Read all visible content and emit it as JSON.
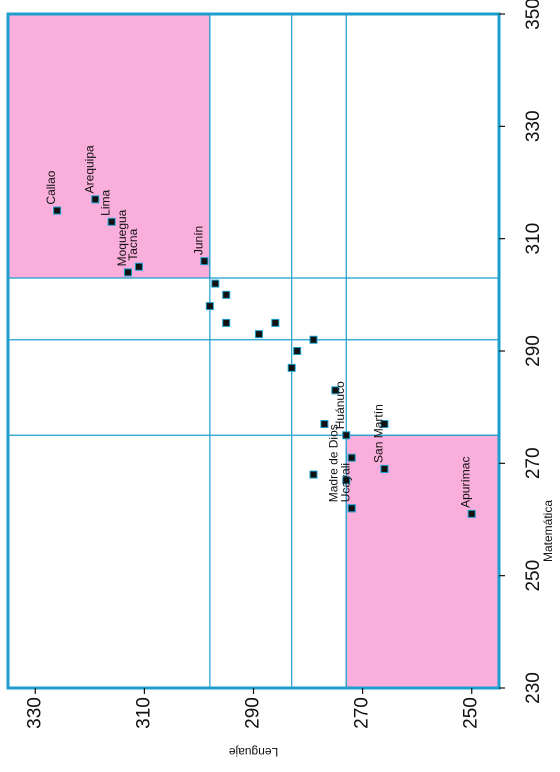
{
  "chart_data": {
    "type": "scatter",
    "title": "",
    "x_axis": {
      "label": "Matemática",
      "range": [
        230,
        350
      ],
      "ticks": [
        230,
        250,
        270,
        290,
        310,
        330,
        350
      ]
    },
    "y_axis": {
      "label": "Lenguaje",
      "range": [
        245,
        335
      ],
      "ticks": [
        250,
        270,
        290,
        310,
        330
      ]
    },
    "reference_lines": {
      "matematica": [
        275,
        292,
        303
      ],
      "lenguaje": [
        273,
        283,
        298
      ]
    },
    "highlight_regions": [
      {
        "matematica": [
          303,
          350
        ],
        "lenguaje": [
          298,
          335
        ],
        "color": "#f9aedb"
      },
      {
        "matematica": [
          230,
          275
        ],
        "lenguaje": [
          245,
          273
        ],
        "color": "#f9aedb"
      }
    ],
    "points": [
      {
        "label": "Callao",
        "matematica": 315,
        "lenguaje": 326
      },
      {
        "label": "Arequipa",
        "matematica": 317,
        "lenguaje": 319
      },
      {
        "label": "Lima",
        "matematica": 313,
        "lenguaje": 316
      },
      {
        "label": "Moquegua",
        "matematica": 304,
        "lenguaje": 313
      },
      {
        "label": "Tacna",
        "matematica": 305,
        "lenguaje": 311
      },
      {
        "label": "Junín",
        "matematica": 306,
        "lenguaje": 299
      },
      {
        "label": "",
        "matematica": 302,
        "lenguaje": 297
      },
      {
        "label": "",
        "matematica": 300,
        "lenguaje": 295
      },
      {
        "label": "",
        "matematica": 298,
        "lenguaje": 298
      },
      {
        "label": "",
        "matematica": 295,
        "lenguaje": 295
      },
      {
        "label": "",
        "matematica": 295,
        "lenguaje": 286
      },
      {
        "label": "",
        "matematica": 293,
        "lenguaje": 289
      },
      {
        "label": "",
        "matematica": 292,
        "lenguaje": 279
      },
      {
        "label": "",
        "matematica": 290,
        "lenguaje": 282
      },
      {
        "label": "",
        "matematica": 287,
        "lenguaje": 283
      },
      {
        "label": "",
        "matematica": 283,
        "lenguaje": 275
      },
      {
        "label": "",
        "matematica": 277,
        "lenguaje": 277
      },
      {
        "label": "",
        "matematica": 277,
        "lenguaje": 266
      },
      {
        "label": "Huánuco",
        "matematica": 275,
        "lenguaje": 273
      },
      {
        "label": "",
        "matematica": 271,
        "lenguaje": 272
      },
      {
        "label": "",
        "matematica": 269,
        "lenguaje": 266
      },
      {
        "label": "",
        "matematica": 268,
        "lenguaje": 279
      },
      {
        "label": "",
        "matematica": 267,
        "lenguaje": 273
      },
      {
        "label": "Ucayali",
        "matematica": 262,
        "lenguaje": 272
      },
      {
        "label": "Madre de Dios",
        "matematica": 262,
        "lenguaje": 272
      },
      {
        "label": "San Martín",
        "matematica": 269,
        "lenguaje": 266
      },
      {
        "label": "Apurímac",
        "matematica": 261,
        "lenguaje": 250
      }
    ],
    "grid": false,
    "legend": "none",
    "colors": {
      "frame": "#1c9fcc",
      "reference_line": "#1c9fcc",
      "region": "#f9aedb",
      "marker": "#111111",
      "marker_edge": "#1c9fcc"
    }
  }
}
